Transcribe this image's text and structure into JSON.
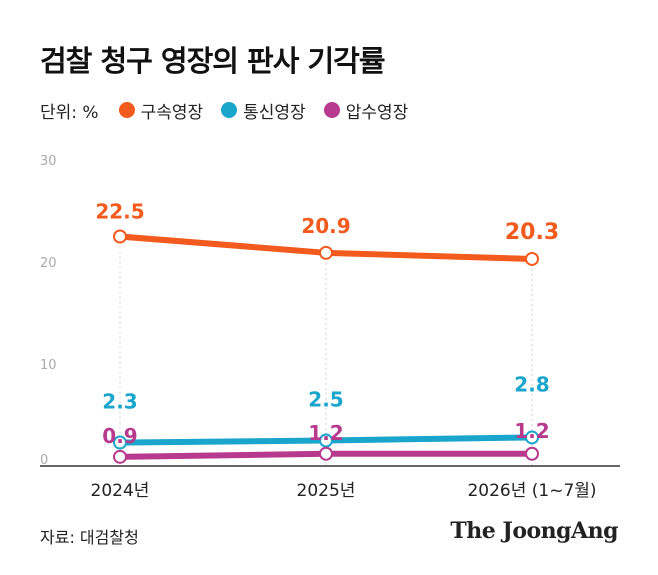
{
  "header": {
    "title": "검찰 청구 영장의 판사 기각률"
  },
  "legend": {
    "unit": "단위: %"
  },
  "footer": {
    "source": "자료: 대검찰청",
    "logo": "The JoongAng"
  },
  "chart_data": {
    "type": "line",
    "title": "검찰 청구 영장의 판사 기각률",
    "categories": [
      "2024년",
      "2025년",
      "2026년 (1~7월)"
    ],
    "series": [
      {
        "name": "구속영장",
        "color": "#f25a1e",
        "values": [
          22.5,
          20.9,
          20.3
        ]
      },
      {
        "name": "통신영장",
        "color": "#1aa5cc",
        "values": [
          2.3,
          2.5,
          2.8
        ]
      },
      {
        "name": "압수영장",
        "color": "#b83a8e",
        "values": [
          0.9,
          1.2,
          1.2
        ]
      }
    ],
    "yticks": [
      0,
      10,
      20,
      30
    ],
    "ylim": [
      0,
      30
    ],
    "xlabel": "",
    "ylabel": "",
    "grid": false,
    "legend_position": "top-left"
  }
}
